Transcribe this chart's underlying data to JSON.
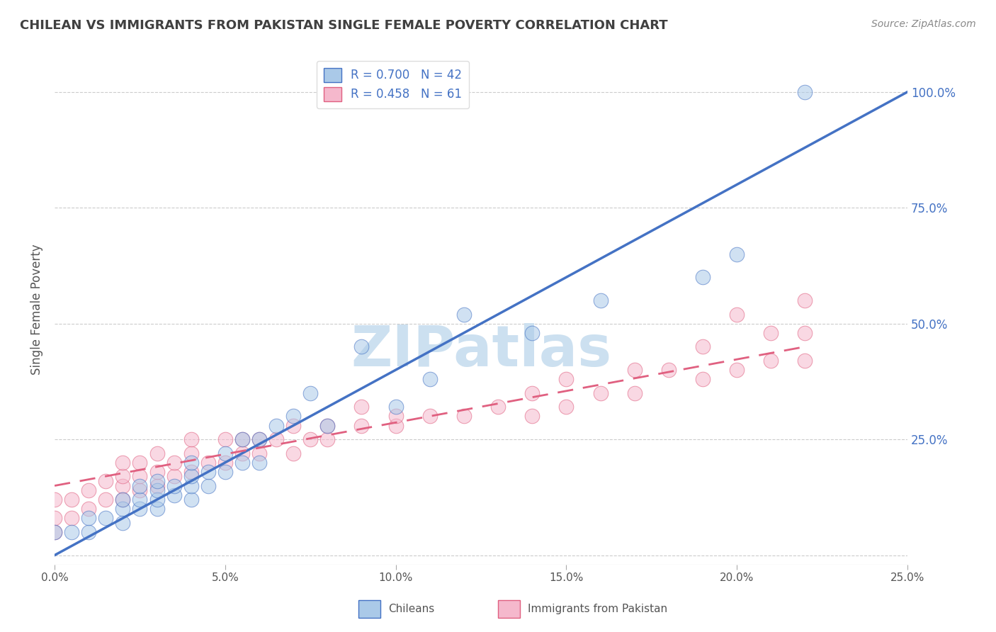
{
  "title": "CHILEAN VS IMMIGRANTS FROM PAKISTAN SINGLE FEMALE POVERTY CORRELATION CHART",
  "source_text": "Source: ZipAtlas.com",
  "ylabel": "Single Female Poverty",
  "xlim": [
    0.0,
    0.25
  ],
  "ylim": [
    -0.02,
    1.08
  ],
  "xticks": [
    0.0,
    0.05,
    0.1,
    0.15,
    0.2,
    0.25
  ],
  "xtick_labels": [
    "0.0%",
    "5.0%",
    "10.0%",
    "15.0%",
    "20.0%",
    "25.0%"
  ],
  "yticks": [
    0.0,
    0.25,
    0.5,
    0.75,
    1.0
  ],
  "ytick_labels": [
    "",
    "25.0%",
    "50.0%",
    "75.0%",
    "100.0%"
  ],
  "legend_r1": "R = 0.700   N = 42",
  "legend_r2": "R = 0.458   N = 61",
  "legend_label1": "Chileans",
  "legend_label2": "Immigrants from Pakistan",
  "color_chilean": "#aac9e8",
  "color_pakistan": "#f5b8cc",
  "color_line_chilean": "#4472c4",
  "color_line_pakistan": "#e06080",
  "title_color": "#404040",
  "axis_label_color": "#555555",
  "tick_color_x": "#555555",
  "tick_color_y": "#4472c4",
  "watermark_color": "#cce0f0",
  "background_color": "#ffffff",
  "line_chilean_x0": 0.0,
  "line_chilean_y0": 0.0,
  "line_chilean_x1": 0.25,
  "line_chilean_y1": 1.0,
  "line_pakistan_x0": 0.0,
  "line_pakistan_y0": 0.15,
  "line_pakistan_x1": 0.22,
  "line_pakistan_y1": 0.45,
  "chilean_x": [
    0.0,
    0.005,
    0.01,
    0.01,
    0.015,
    0.02,
    0.02,
    0.02,
    0.025,
    0.025,
    0.025,
    0.03,
    0.03,
    0.03,
    0.03,
    0.035,
    0.035,
    0.04,
    0.04,
    0.04,
    0.04,
    0.045,
    0.045,
    0.05,
    0.05,
    0.055,
    0.055,
    0.06,
    0.06,
    0.065,
    0.07,
    0.075,
    0.08,
    0.09,
    0.1,
    0.11,
    0.12,
    0.14,
    0.16,
    0.19,
    0.2,
    0.22
  ],
  "chilean_y": [
    0.05,
    0.05,
    0.05,
    0.08,
    0.08,
    0.07,
    0.1,
    0.12,
    0.1,
    0.12,
    0.15,
    0.1,
    0.12,
    0.14,
    0.16,
    0.13,
    0.15,
    0.12,
    0.15,
    0.17,
    0.2,
    0.15,
    0.18,
    0.18,
    0.22,
    0.2,
    0.25,
    0.2,
    0.25,
    0.28,
    0.3,
    0.35,
    0.28,
    0.45,
    0.32,
    0.38,
    0.52,
    0.48,
    0.55,
    0.6,
    0.65,
    1.0
  ],
  "pakistan_x": [
    0.0,
    0.0,
    0.0,
    0.005,
    0.005,
    0.01,
    0.01,
    0.015,
    0.015,
    0.02,
    0.02,
    0.02,
    0.02,
    0.025,
    0.025,
    0.025,
    0.03,
    0.03,
    0.03,
    0.035,
    0.035,
    0.04,
    0.04,
    0.04,
    0.045,
    0.05,
    0.05,
    0.055,
    0.055,
    0.06,
    0.06,
    0.065,
    0.07,
    0.07,
    0.075,
    0.08,
    0.08,
    0.09,
    0.09,
    0.1,
    0.1,
    0.11,
    0.12,
    0.13,
    0.14,
    0.14,
    0.15,
    0.15,
    0.16,
    0.17,
    0.17,
    0.18,
    0.19,
    0.19,
    0.2,
    0.2,
    0.21,
    0.21,
    0.22,
    0.22,
    0.22
  ],
  "pakistan_y": [
    0.05,
    0.08,
    0.12,
    0.08,
    0.12,
    0.1,
    0.14,
    0.12,
    0.16,
    0.12,
    0.15,
    0.17,
    0.2,
    0.14,
    0.17,
    0.2,
    0.15,
    0.18,
    0.22,
    0.17,
    0.2,
    0.18,
    0.22,
    0.25,
    0.2,
    0.2,
    0.25,
    0.22,
    0.25,
    0.22,
    0.25,
    0.25,
    0.22,
    0.28,
    0.25,
    0.25,
    0.28,
    0.28,
    0.32,
    0.28,
    0.3,
    0.3,
    0.3,
    0.32,
    0.3,
    0.35,
    0.32,
    0.38,
    0.35,
    0.35,
    0.4,
    0.4,
    0.38,
    0.45,
    0.4,
    0.52,
    0.42,
    0.48,
    0.42,
    0.48,
    0.55
  ]
}
